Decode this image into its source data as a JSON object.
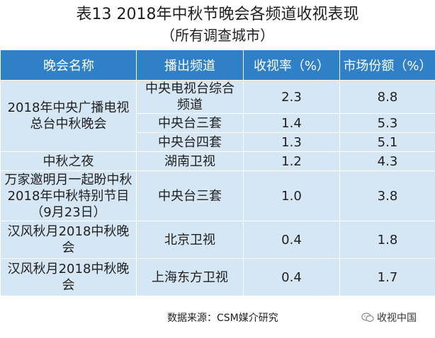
{
  "title": "表13  2018年中秋节晚会各频道收视表现",
  "subtitle": "（所有调查城市）",
  "table": {
    "headers": [
      "晚会名称",
      "播出频道",
      "收视率（%）",
      "市场份额（%）"
    ],
    "groups": [
      {
        "name": "2018年中央广播电视总台中秋晚会",
        "rows": [
          {
            "channel": "中央电视台综合频道",
            "rating": "2.3",
            "share": "8.8"
          },
          {
            "channel": "中央台三套",
            "rating": "1.4",
            "share": "5.3"
          },
          {
            "channel": "中央台四套",
            "rating": "1.3",
            "share": "5.1"
          }
        ]
      },
      {
        "name": "中秋之夜",
        "rows": [
          {
            "channel": "湖南卫视",
            "rating": "1.2",
            "share": "4.3"
          }
        ]
      },
      {
        "name": "万家邀明月一起盼中秋2018年中秋特别节目（9月23日）",
        "rows": [
          {
            "channel": "中央台三套",
            "rating": "1.0",
            "share": "3.8"
          }
        ]
      },
      {
        "name": "汉风秋月2018中秋晚会",
        "rows": [
          {
            "channel": "北京卫视",
            "rating": "0.4",
            "share": "1.8"
          }
        ]
      },
      {
        "name": "汉风秋月2018中秋晚会",
        "rows": [
          {
            "channel": "上海东方卫视",
            "rating": "0.4",
            "share": "1.7"
          }
        ]
      }
    ]
  },
  "footer": {
    "source": "数据来源：CSM媒介研究",
    "brand": "收视中国",
    "brand_icon": "wechat-icon"
  },
  "colors": {
    "header_bg": "#2f80c6",
    "cell_bg": "#d5e6f5",
    "grid": "#ffffff"
  }
}
